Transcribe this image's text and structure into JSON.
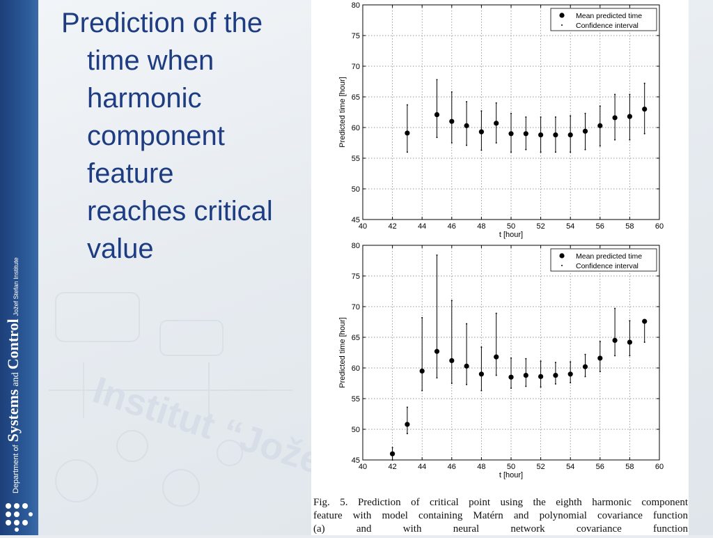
{
  "slide": {
    "title_lines": [
      "Prediction of the",
      "time when",
      "harmonic",
      "component",
      "feature",
      "reaches critical",
      "value"
    ],
    "sidebar": {
      "dept_of": "Department of",
      "systems": "Systems",
      "and": "and",
      "control": "Control",
      "institute": "Jožef Stefan Institute"
    },
    "watermark": "Institut “Jože",
    "caption_lines": [
      "Fig. 5.    Prediction of critical point using the eighth harmonic component",
      "feature with model containing Matérn and polynomial covariance function",
      "(a) and with neural network covariance function"
    ],
    "colors": {
      "title": "#1d3c82",
      "sidebar": "#1c3f79",
      "markers": "#000000"
    }
  },
  "chart_data": [
    {
      "type": "scatter",
      "subtitle": "",
      "xlabel": "t [hour]",
      "ylabel": "Predicted time [hour]",
      "xlim": [
        40,
        60
      ],
      "ylim": [
        45,
        80
      ],
      "xticks": [
        40,
        42,
        44,
        46,
        48,
        50,
        52,
        54,
        56,
        58,
        60
      ],
      "yticks": [
        45,
        50,
        55,
        60,
        65,
        70,
        75,
        80
      ],
      "grid": true,
      "legend_position": "top-right",
      "series": [
        {
          "name": "Mean predicted time",
          "marker": "filled-circle",
          "x": [
            43,
            45,
            46,
            47,
            48,
            49,
            50,
            51,
            52,
            53,
            54,
            55,
            56,
            57,
            58,
            59
          ],
          "y": [
            59.1,
            62.1,
            61.0,
            60.3,
            59.3,
            60.7,
            59.0,
            59.0,
            58.8,
            58.8,
            58.8,
            59.4,
            60.3,
            61.6,
            61.8,
            63.0
          ]
        },
        {
          "name": "Confidence interval",
          "marker": "dot",
          "x": [
            43,
            45,
            46,
            47,
            48,
            49,
            50,
            51,
            52,
            53,
            54,
            55,
            56,
            57,
            58,
            59
          ],
          "lower": [
            56.0,
            58.4,
            57.5,
            57.1,
            56.3,
            57.5,
            56.0,
            56.4,
            56.0,
            56.0,
            56.0,
            56.4,
            57.0,
            58.0,
            58.0,
            59.0
          ],
          "upper": [
            63.7,
            67.8,
            65.8,
            64.2,
            62.7,
            64.0,
            62.3,
            61.7,
            61.7,
            61.7,
            61.9,
            62.3,
            63.5,
            65.4,
            65.4,
            67.2
          ]
        }
      ]
    },
    {
      "type": "scatter",
      "subtitle": "",
      "xlabel": "t [hour]",
      "ylabel": "Predicted time [hour]",
      "xlim": [
        40,
        60
      ],
      "ylim": [
        45,
        80
      ],
      "xticks": [
        40,
        42,
        44,
        46,
        48,
        50,
        52,
        54,
        56,
        58,
        60
      ],
      "yticks": [
        45,
        50,
        55,
        60,
        65,
        70,
        75,
        80
      ],
      "grid": true,
      "legend_position": "top-right",
      "series": [
        {
          "name": "Mean predicted time",
          "marker": "filled-circle",
          "x": [
            42,
            43,
            44,
            45,
            46,
            47,
            48,
            49,
            50,
            51,
            52,
            53,
            54,
            55,
            56,
            57,
            58,
            59
          ],
          "y": [
            46.0,
            50.8,
            59.5,
            62.7,
            61.2,
            60.3,
            59.0,
            61.8,
            58.5,
            58.8,
            58.6,
            58.8,
            59.0,
            60.2,
            61.6,
            64.5,
            64.2,
            67.6
          ]
        },
        {
          "name": "Confidence interval",
          "marker": "dot",
          "x": [
            42,
            43,
            44,
            45,
            46,
            47,
            48,
            49,
            50,
            51,
            52,
            53,
            54,
            55,
            56,
            57,
            58,
            59
          ],
          "lower": [
            45.0,
            49.3,
            56.3,
            58.4,
            57.5,
            57.3,
            56.3,
            58.8,
            56.7,
            57.0,
            56.9,
            57.4,
            57.6,
            58.6,
            59.4,
            62.0,
            62.0,
            64.2
          ],
          "upper": [
            47.0,
            53.6,
            68.2,
            78.4,
            71.0,
            67.2,
            63.4,
            68.9,
            61.6,
            61.5,
            61.1,
            60.9,
            61.0,
            62.2,
            64.3,
            69.7,
            67.7,
            67.8
          ]
        }
      ]
    }
  ]
}
